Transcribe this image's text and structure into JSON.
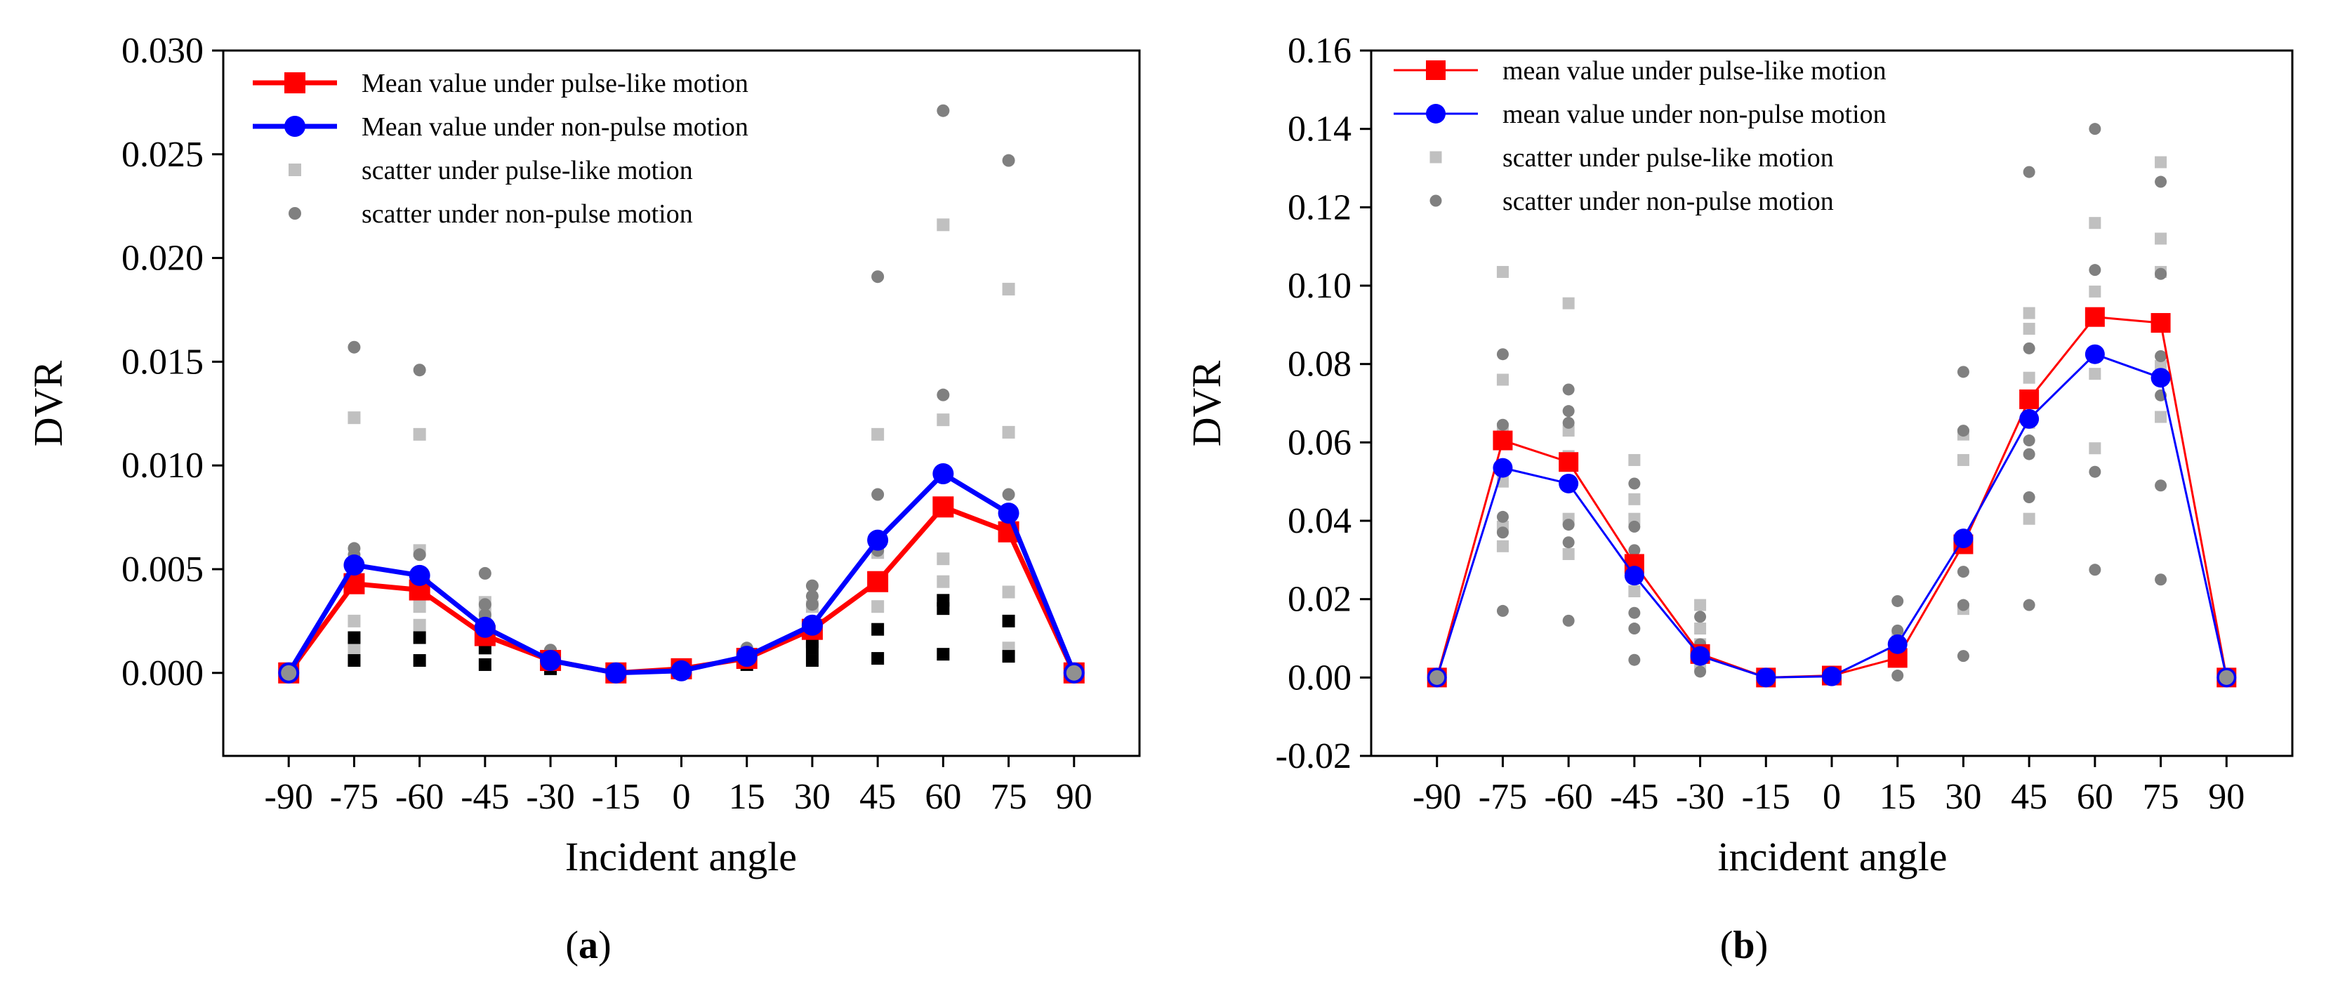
{
  "colors": {
    "pulse_mean": "#ff0000",
    "nonpulse_mean": "#0000ff",
    "pulse_scatter": "#c0c0c0",
    "nonpulse_scatter": "#808080",
    "low_scatter": "#000000"
  },
  "chart_data": [
    {
      "type": "line",
      "panel_label": {
        "open": "(",
        "letter": "a",
        "close": ")"
      },
      "xlabel": "Incident angle",
      "ylabel": "DVR",
      "x": [
        -90,
        -75,
        -60,
        -45,
        -30,
        -15,
        0,
        15,
        30,
        45,
        60,
        75,
        90
      ],
      "x_tick_labels": [
        "-90",
        "-75",
        "-60",
        "-45",
        "-30",
        "-15",
        "0",
        "15",
        "30",
        "45",
        "60",
        "75",
        "90"
      ],
      "xlim": [
        -105,
        105
      ],
      "ylim": [
        -0.004,
        0.03
      ],
      "y_ticks": [
        0.0,
        0.005,
        0.01,
        0.015,
        0.02,
        0.025,
        0.03
      ],
      "y_tick_labels": [
        "0.000",
        "0.005",
        "0.010",
        "0.015",
        "0.020",
        "0.025",
        "0.030"
      ],
      "legend_position": "top-left",
      "series": [
        {
          "name": "Mean value under pulse-like motion",
          "kind": "line",
          "marker": "square",
          "color": "#ff0000",
          "values": [
            0.0,
            0.0043,
            0.004,
            0.0018,
            0.0006,
            0.0,
            0.0002,
            0.0007,
            0.0021,
            0.0044,
            0.008,
            0.0068,
            0.0
          ]
        },
        {
          "name": "Mean value under non-pulse motion",
          "kind": "line",
          "marker": "circle",
          "color": "#0000ff",
          "values": [
            0.0,
            0.0052,
            0.0047,
            0.0022,
            0.0006,
            0.0,
            0.0001,
            0.0008,
            0.0023,
            0.0064,
            0.0096,
            0.0077,
            0.0
          ]
        },
        {
          "name": "scatter under pulse-like motion",
          "kind": "scatter",
          "marker": "square",
          "color": "#c0c0c0",
          "points": [
            [
              -75,
              0.0123
            ],
            [
              -75,
              0.0025
            ],
            [
              -75,
              0.0012
            ],
            [
              -60,
              0.0115
            ],
            [
              -60,
              0.0059
            ],
            [
              -60,
              0.0032
            ],
            [
              -60,
              0.0023
            ],
            [
              -45,
              0.0034
            ],
            [
              -45,
              0.0028
            ],
            [
              -45,
              0.0012
            ],
            [
              -30,
              0.0009
            ],
            [
              -30,
              0.0004
            ],
            [
              15,
              0.001
            ],
            [
              30,
              0.0032
            ],
            [
              30,
              0.0016
            ],
            [
              45,
              0.0115
            ],
            [
              45,
              0.0058
            ],
            [
              45,
              0.0032
            ],
            [
              60,
              0.0216
            ],
            [
              60,
              0.0122
            ],
            [
              60,
              0.0055
            ],
            [
              60,
              0.0044
            ],
            [
              75,
              0.0185
            ],
            [
              75,
              0.0116
            ],
            [
              75,
              0.0039
            ],
            [
              75,
              0.0012
            ]
          ]
        },
        {
          "name": "scatter under non-pulse motion",
          "kind": "scatter",
          "marker": "circle",
          "color": "#808080",
          "points": [
            [
              -75,
              0.0157
            ],
            [
              -75,
              0.006
            ],
            [
              -75,
              0.0057
            ],
            [
              -60,
              0.0146
            ],
            [
              -60,
              0.0057
            ],
            [
              -60,
              0.0043
            ],
            [
              -45,
              0.0048
            ],
            [
              -45,
              0.0033
            ],
            [
              -45,
              0.0028
            ],
            [
              -30,
              0.0011
            ],
            [
              -30,
              0.0008
            ],
            [
              15,
              0.0012
            ],
            [
              30,
              0.0042
            ],
            [
              30,
              0.0037
            ],
            [
              30,
              0.0033
            ],
            [
              45,
              0.0191
            ],
            [
              45,
              0.0086
            ],
            [
              45,
              0.0059
            ],
            [
              60,
              0.0271
            ],
            [
              60,
              0.0134
            ],
            [
              60,
              0.0097
            ],
            [
              75,
              0.0247
            ],
            [
              75,
              0.0086
            ],
            [
              75,
              0.0074
            ]
          ]
        },
        {
          "name": "",
          "kind": "scatter",
          "marker": "square",
          "color": "#000000",
          "points": [
            [
              -75,
              0.0017
            ],
            [
              -75,
              0.0006
            ],
            [
              -60,
              0.0017
            ],
            [
              -60,
              0.0006
            ],
            [
              -45,
              0.0012
            ],
            [
              -45,
              0.0004
            ],
            [
              -30,
              0.0005
            ],
            [
              -30,
              0.0002
            ],
            [
              15,
              0.0006
            ],
            [
              15,
              0.0004
            ],
            [
              30,
              0.0015
            ],
            [
              30,
              0.0012
            ],
            [
              30,
              0.0006
            ],
            [
              45,
              0.0021
            ],
            [
              45,
              0.0007
            ],
            [
              60,
              0.0035
            ],
            [
              60,
              0.0031
            ],
            [
              60,
              0.0009
            ],
            [
              75,
              0.0025
            ],
            [
              75,
              0.0008
            ]
          ]
        }
      ]
    },
    {
      "type": "line",
      "panel_label": {
        "open": "(",
        "letter": "b",
        "close": ")"
      },
      "xlabel": "incident angle",
      "ylabel": "DVR",
      "x": [
        -90,
        -75,
        -60,
        -45,
        -30,
        -15,
        0,
        15,
        30,
        45,
        60,
        75,
        90
      ],
      "x_tick_labels": [
        "-90",
        "-75",
        "-60",
        "-45",
        "-30",
        "-15",
        "0",
        "15",
        "30",
        "45",
        "60",
        "75",
        "90"
      ],
      "xlim": [
        -105,
        105
      ],
      "ylim": [
        -0.02,
        0.16
      ],
      "y_ticks": [
        -0.02,
        0.0,
        0.02,
        0.04,
        0.06,
        0.08,
        0.1,
        0.12,
        0.14,
        0.16
      ],
      "y_tick_labels": [
        "-0.02",
        "0.00",
        "0.02",
        "0.04",
        "0.06",
        "0.08",
        "0.10",
        "0.12",
        "0.14",
        "0.16"
      ],
      "legend_position": "top-left",
      "series": [
        {
          "name": "mean value under pulse-like motion",
          "kind": "line",
          "marker": "square",
          "color": "#ff0000",
          "values": [
            0.0,
            0.0605,
            0.055,
            0.029,
            0.006,
            0.0,
            0.0005,
            0.005,
            0.034,
            0.071,
            0.092,
            0.0905,
            0.0
          ]
        },
        {
          "name": "mean value under non-pulse motion",
          "kind": "line",
          "marker": "circle",
          "color": "#0000ff",
          "values": [
            0.0,
            0.0535,
            0.0495,
            0.026,
            0.0055,
            0.0,
            0.0003,
            0.0085,
            0.0355,
            0.066,
            0.0825,
            0.0765,
            0.0
          ]
        },
        {
          "name": "scatter under pulse-like motion",
          "kind": "scatter",
          "marker": "square",
          "color": "#c0c0c0",
          "points": [
            [
              -75,
              0.1035
            ],
            [
              -75,
              0.076
            ],
            [
              -75,
              0.0635
            ],
            [
              -75,
              0.05
            ],
            [
              -75,
              0.0385
            ],
            [
              -75,
              0.0335
            ],
            [
              -60,
              0.0955
            ],
            [
              -60,
              0.063
            ],
            [
              -60,
              0.0565
            ],
            [
              -60,
              0.0405
            ],
            [
              -60,
              0.0315
            ],
            [
              -45,
              0.0555
            ],
            [
              -45,
              0.0455
            ],
            [
              -45,
              0.0405
            ],
            [
              -45,
              0.022
            ],
            [
              -30,
              0.0185
            ],
            [
              -30,
              0.0125
            ],
            [
              -30,
              0.0085
            ],
            [
              -30,
              0.003
            ],
            [
              15,
              0.0105
            ],
            [
              15,
              0.004
            ],
            [
              30,
              0.062
            ],
            [
              30,
              0.0555
            ],
            [
              30,
              0.035
            ],
            [
              30,
              0.0175
            ],
            [
              45,
              0.093
            ],
            [
              45,
              0.089
            ],
            [
              45,
              0.0765
            ],
            [
              45,
              0.065
            ],
            [
              45,
              0.0405
            ],
            [
              60,
              0.116
            ],
            [
              60,
              0.0985
            ],
            [
              60,
              0.0775
            ],
            [
              60,
              0.0585
            ],
            [
              75,
              0.1315
            ],
            [
              75,
              0.112
            ],
            [
              75,
              0.1035
            ],
            [
              75,
              0.0795
            ],
            [
              75,
              0.0665
            ]
          ]
        },
        {
          "name": "scatter under non-pulse motion",
          "kind": "scatter",
          "marker": "circle",
          "color": "#808080",
          "points": [
            [
              -75,
              0.0825
            ],
            [
              -75,
              0.0645
            ],
            [
              -75,
              0.041
            ],
            [
              -75,
              0.037
            ],
            [
              -75,
              0.017
            ],
            [
              -60,
              0.0735
            ],
            [
              -60,
              0.068
            ],
            [
              -60,
              0.065
            ],
            [
              -60,
              0.039
            ],
            [
              -60,
              0.0345
            ],
            [
              -60,
              0.0145
            ],
            [
              -45,
              0.0495
            ],
            [
              -45,
              0.0385
            ],
            [
              -45,
              0.0325
            ],
            [
              -45,
              0.0165
            ],
            [
              -45,
              0.0125
            ],
            [
              -45,
              0.0045
            ],
            [
              -30,
              0.0155
            ],
            [
              -30,
              0.0085
            ],
            [
              -30,
              0.0045
            ],
            [
              -30,
              0.0015
            ],
            [
              15,
              0.0195
            ],
            [
              15,
              0.012
            ],
            [
              15,
              0.0005
            ],
            [
              30,
              0.078
            ],
            [
              30,
              0.063
            ],
            [
              30,
              0.027
            ],
            [
              30,
              0.0185
            ],
            [
              30,
              0.0055
            ],
            [
              45,
              0.129
            ],
            [
              45,
              0.084
            ],
            [
              45,
              0.0605
            ],
            [
              45,
              0.057
            ],
            [
              45,
              0.046
            ],
            [
              45,
              0.0185
            ],
            [
              60,
              0.14
            ],
            [
              60,
              0.104
            ],
            [
              60,
              0.0525
            ],
            [
              60,
              0.0275
            ],
            [
              75,
              0.1265
            ],
            [
              75,
              0.103
            ],
            [
              75,
              0.082
            ],
            [
              75,
              0.072
            ],
            [
              75,
              0.049
            ],
            [
              75,
              0.025
            ]
          ]
        }
      ]
    }
  ]
}
